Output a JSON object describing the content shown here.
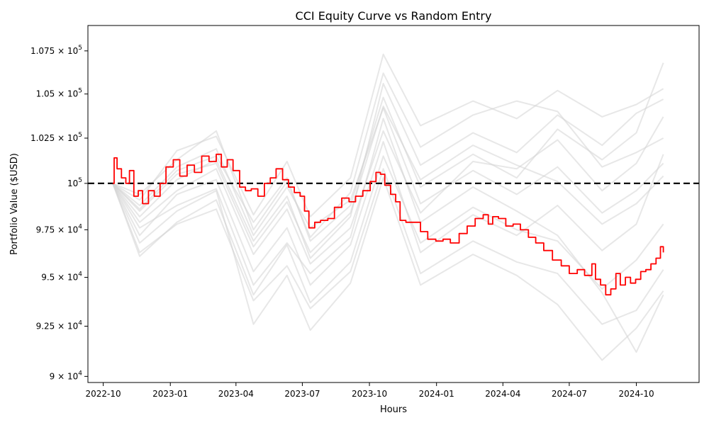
{
  "chart_data": {
    "type": "line",
    "title": "CCI Equity Curve vs Random Entry",
    "xlabel": "Hours",
    "ylabel": "Portfolio Value ($USD)",
    "xlim": [
      "2022-09-10",
      "2024-12-26"
    ],
    "ylim": [
      89700,
      109000
    ],
    "yscale": "log",
    "grid": false,
    "x_ticks": [
      "2022-10",
      "2023-01",
      "2023-04",
      "2023-07",
      "2023-10",
      "2024-01",
      "2024-04",
      "2024-07",
      "2024-10"
    ],
    "y_ticks": [
      {
        "value": 90000,
        "mantissa": "9",
        "exponent": "4"
      },
      {
        "value": 92500,
        "mantissa": "9.25",
        "exponent": "4"
      },
      {
        "value": 95000,
        "mantissa": "9.5",
        "exponent": "4"
      },
      {
        "value": 97500,
        "mantissa": "9.75",
        "exponent": "4"
      },
      {
        "value": 100000,
        "mantissa": "10",
        "exponent": "5"
      },
      {
        "value": 102500,
        "mantissa": "1.025",
        "exponent": "5"
      },
      {
        "value": 105000,
        "mantissa": "1.05",
        "exponent": "5"
      },
      {
        "value": 107500,
        "mantissa": "1.075",
        "exponent": "5"
      }
    ],
    "reference_line": {
      "value": 100000,
      "style": "dashed",
      "color": "#000000"
    },
    "colors": {
      "strategy": "#ff0000",
      "random": "#d3d3d3",
      "reference": "#000000"
    },
    "series": [
      {
        "color": "#ff0000",
        "points": [
          [
            "2022-10-14",
            100000
          ],
          [
            "2022-10-16",
            101400
          ],
          [
            "2022-10-20",
            100800
          ],
          [
            "2022-10-26",
            100300
          ],
          [
            "2022-11-01",
            100000
          ],
          [
            "2022-11-06",
            100700
          ],
          [
            "2022-11-12",
            99300
          ],
          [
            "2022-11-18",
            99600
          ],
          [
            "2022-11-24",
            98900
          ],
          [
            "2022-12-02",
            99600
          ],
          [
            "2022-12-10",
            99300
          ],
          [
            "2022-12-18",
            100000
          ],
          [
            "2022-12-26",
            100900
          ],
          [
            "2023-01-05",
            101300
          ],
          [
            "2023-01-14",
            100400
          ],
          [
            "2023-01-24",
            101000
          ],
          [
            "2023-02-03",
            100600
          ],
          [
            "2023-02-13",
            101500
          ],
          [
            "2023-02-23",
            101200
          ],
          [
            "2023-03-05",
            101600
          ],
          [
            "2023-03-12",
            100900
          ],
          [
            "2023-03-20",
            101300
          ],
          [
            "2023-03-28",
            100700
          ],
          [
            "2023-04-06",
            99800
          ],
          [
            "2023-04-14",
            99600
          ],
          [
            "2023-04-22",
            99700
          ],
          [
            "2023-05-01",
            99300
          ],
          [
            "2023-05-10",
            100000
          ],
          [
            "2023-05-18",
            100300
          ],
          [
            "2023-05-26",
            100800
          ],
          [
            "2023-06-04",
            100200
          ],
          [
            "2023-06-12",
            99800
          ],
          [
            "2023-06-20",
            99500
          ],
          [
            "2023-06-28",
            99300
          ],
          [
            "2023-07-04",
            98500
          ],
          [
            "2023-07-10",
            97600
          ],
          [
            "2023-07-18",
            97900
          ],
          [
            "2023-07-26",
            98000
          ],
          [
            "2023-08-05",
            98100
          ],
          [
            "2023-08-14",
            98700
          ],
          [
            "2023-08-24",
            99200
          ],
          [
            "2023-09-03",
            99000
          ],
          [
            "2023-09-12",
            99300
          ],
          [
            "2023-09-22",
            99600
          ],
          [
            "2023-10-02",
            100100
          ],
          [
            "2023-10-10",
            100600
          ],
          [
            "2023-10-16",
            100500
          ],
          [
            "2023-10-22",
            99900
          ],
          [
            "2023-10-30",
            99400
          ],
          [
            "2023-11-06",
            99000
          ],
          [
            "2023-11-12",
            98000
          ],
          [
            "2023-11-20",
            97900
          ],
          [
            "2023-12-01",
            97900
          ],
          [
            "2023-12-10",
            97400
          ],
          [
            "2023-12-20",
            97000
          ],
          [
            "2023-12-31",
            96900
          ],
          [
            "2024-01-10",
            97000
          ],
          [
            "2024-01-20",
            96800
          ],
          [
            "2024-02-01",
            97300
          ],
          [
            "2024-02-12",
            97700
          ],
          [
            "2024-02-23",
            98100
          ],
          [
            "2024-03-05",
            98300
          ],
          [
            "2024-03-12",
            97800
          ],
          [
            "2024-03-18",
            98200
          ],
          [
            "2024-03-26",
            98100
          ],
          [
            "2024-04-05",
            97700
          ],
          [
            "2024-04-15",
            97800
          ],
          [
            "2024-04-25",
            97500
          ],
          [
            "2024-05-06",
            97100
          ],
          [
            "2024-05-16",
            96800
          ],
          [
            "2024-05-27",
            96400
          ],
          [
            "2024-06-08",
            95900
          ],
          [
            "2024-06-20",
            95600
          ],
          [
            "2024-07-01",
            95200
          ],
          [
            "2024-07-12",
            95400
          ],
          [
            "2024-07-22",
            95100
          ],
          [
            "2024-08-01",
            95700
          ],
          [
            "2024-08-06",
            94900
          ],
          [
            "2024-08-13",
            94600
          ],
          [
            "2024-08-20",
            94100
          ],
          [
            "2024-08-27",
            94400
          ],
          [
            "2024-09-03",
            95200
          ],
          [
            "2024-09-09",
            94600
          ],
          [
            "2024-09-16",
            95000
          ],
          [
            "2024-09-23",
            94700
          ],
          [
            "2024-09-30",
            94900
          ],
          [
            "2024-10-07",
            95300
          ],
          [
            "2024-10-14",
            95400
          ],
          [
            "2024-10-21",
            95700
          ],
          [
            "2024-10-28",
            96000
          ],
          [
            "2024-11-03",
            96600
          ],
          [
            "2024-11-07",
            96300
          ]
        ]
      }
    ],
    "random_series": [
      [
        [
          "2022-10-14",
          100000
        ],
        [
          "2022-11-20",
          98600
        ],
        [
          "2023-01-10",
          100700
        ],
        [
          "2023-03-05",
          101500
        ],
        [
          "2023-04-25",
          97900
        ],
        [
          "2023-06-10",
          100300
        ],
        [
          "2023-07-12",
          96900
        ],
        [
          "2023-09-05",
          98800
        ],
        [
          "2023-10-20",
          104800
        ],
        [
          "2023-12-10",
          99800
        ],
        [
          "2024-02-20",
          101600
        ],
        [
          "2024-04-20",
          100300
        ],
        [
          "2024-06-15",
          103000
        ],
        [
          "2024-08-15",
          101300
        ],
        [
          "2024-10-01",
          102800
        ],
        [
          "2024-11-07",
          106800
        ]
      ],
      [
        [
          "2022-10-14",
          100000
        ],
        [
          "2022-11-20",
          97200
        ],
        [
          "2023-01-10",
          99400
        ],
        [
          "2023-03-05",
          100200
        ],
        [
          "2023-04-25",
          95300
        ],
        [
          "2023-06-10",
          97600
        ],
        [
          "2023-07-12",
          94600
        ],
        [
          "2023-09-05",
          96700
        ],
        [
          "2023-10-20",
          102300
        ],
        [
          "2023-12-10",
          96300
        ],
        [
          "2024-02-20",
          98300
        ],
        [
          "2024-04-20",
          97200
        ],
        [
          "2024-06-15",
          98800
        ],
        [
          "2024-08-15",
          96400
        ],
        [
          "2024-10-01",
          97800
        ],
        [
          "2024-11-07",
          101600
        ]
      ],
      [
        [
          "2022-10-14",
          100000
        ],
        [
          "2022-11-20",
          99100
        ],
        [
          "2023-01-10",
          101800
        ],
        [
          "2023-03-05",
          102600
        ],
        [
          "2023-04-25",
          98300
        ],
        [
          "2023-06-10",
          101200
        ],
        [
          "2023-07-12",
          98200
        ],
        [
          "2023-09-05",
          100300
        ],
        [
          "2023-10-20",
          107300
        ],
        [
          "2023-12-10",
          103200
        ],
        [
          "2024-02-20",
          104600
        ],
        [
          "2024-04-20",
          103600
        ],
        [
          "2024-06-15",
          105200
        ],
        [
          "2024-08-15",
          103700
        ],
        [
          "2024-10-01",
          104400
        ],
        [
          "2024-11-07",
          105300
        ]
      ],
      [
        [
          "2022-10-14",
          100000
        ],
        [
          "2022-11-20",
          96300
        ],
        [
          "2023-01-10",
          97800
        ],
        [
          "2023-03-05",
          98600
        ],
        [
          "2023-04-25",
          93800
        ],
        [
          "2023-06-10",
          95600
        ],
        [
          "2023-07-12",
          93400
        ],
        [
          "2023-09-05",
          95300
        ],
        [
          "2023-10-20",
          100800
        ],
        [
          "2023-12-10",
          95200
        ],
        [
          "2024-02-20",
          96900
        ],
        [
          "2024-04-20",
          95800
        ],
        [
          "2024-06-15",
          95200
        ],
        [
          "2024-08-15",
          92600
        ],
        [
          "2024-10-01",
          93300
        ],
        [
          "2024-11-07",
          95400
        ]
      ],
      [
        [
          "2022-10-14",
          100000
        ],
        [
          "2022-11-20",
          98200
        ],
        [
          "2023-01-10",
          100200
        ],
        [
          "2023-03-05",
          101300
        ],
        [
          "2023-04-25",
          96900
        ],
        [
          "2023-06-10",
          99300
        ],
        [
          "2023-07-12",
          96000
        ],
        [
          "2023-09-05",
          98200
        ],
        [
          "2023-10-20",
          105600
        ],
        [
          "2023-12-10",
          101000
        ],
        [
          "2024-02-20",
          102800
        ],
        [
          "2024-04-20",
          101700
        ],
        [
          "2024-06-15",
          103800
        ],
        [
          "2024-08-15",
          102100
        ],
        [
          "2024-10-01",
          103900
        ],
        [
          "2024-11-07",
          104700
        ]
      ],
      [
        [
          "2022-10-14",
          100000
        ],
        [
          "2022-11-20",
          97600
        ],
        [
          "2023-01-10",
          98800
        ],
        [
          "2023-03-05",
          99700
        ],
        [
          "2023-04-25",
          94600
        ],
        [
          "2023-06-10",
          96800
        ],
        [
          "2023-07-12",
          95200
        ],
        [
          "2023-09-05",
          97100
        ],
        [
          "2023-10-20",
          103600
        ],
        [
          "2023-12-10",
          97900
        ],
        [
          "2024-02-20",
          99800
        ],
        [
          "2024-04-20",
          98500
        ],
        [
          "2024-06-15",
          97200
        ],
        [
          "2024-08-15",
          94200
        ],
        [
          "2024-10-01",
          91200
        ],
        [
          "2024-11-07",
          94100
        ]
      ],
      [
        [
          "2022-10-14",
          100000
        ],
        [
          "2022-11-20",
          99400
        ],
        [
          "2023-01-10",
          101300
        ],
        [
          "2023-03-05",
          102900
        ],
        [
          "2023-04-25",
          97500
        ],
        [
          "2023-06-10",
          100100
        ],
        [
          "2023-07-12",
          97100
        ],
        [
          "2023-09-05",
          99500
        ],
        [
          "2023-10-20",
          106200
        ],
        [
          "2023-12-10",
          102000
        ],
        [
          "2024-02-20",
          103800
        ],
        [
          "2024-04-20",
          104600
        ],
        [
          "2024-06-15",
          104000
        ],
        [
          "2024-08-15",
          100900
        ],
        [
          "2024-10-01",
          101700
        ],
        [
          "2024-11-07",
          102500
        ]
      ],
      [
        [
          "2022-10-14",
          100000
        ],
        [
          "2022-11-20",
          96800
        ],
        [
          "2023-01-10",
          98500
        ],
        [
          "2023-03-05",
          99600
        ],
        [
          "2023-04-25",
          92600
        ],
        [
          "2023-06-10",
          95100
        ],
        [
          "2023-07-12",
          92300
        ],
        [
          "2023-09-05",
          94700
        ],
        [
          "2023-10-20",
          100300
        ],
        [
          "2023-12-10",
          94600
        ],
        [
          "2024-02-20",
          96200
        ],
        [
          "2024-04-20",
          95100
        ],
        [
          "2024-06-15",
          93600
        ],
        [
          "2024-08-15",
          90800
        ],
        [
          "2024-10-01",
          92400
        ],
        [
          "2024-11-07",
          94300
        ]
      ],
      [
        [
          "2022-10-14",
          100000
        ],
        [
          "2022-11-20",
          98800
        ],
        [
          "2023-01-10",
          100900
        ],
        [
          "2023-03-05",
          101900
        ],
        [
          "2023-04-25",
          97200
        ],
        [
          "2023-06-10",
          99800
        ],
        [
          "2023-07-12",
          97600
        ],
        [
          "2023-09-05",
          99100
        ],
        [
          "2023-10-20",
          104200
        ],
        [
          "2023-12-10",
          98900
        ],
        [
          "2024-02-20",
          100700
        ],
        [
          "2024-04-20",
          99400
        ],
        [
          "2024-06-15",
          100900
        ],
        [
          "2024-08-15",
          98400
        ],
        [
          "2024-10-01",
          99600
        ],
        [
          "2024-11-07",
          101100
        ]
      ],
      [
        [
          "2022-10-14",
          100000
        ],
        [
          "2022-11-20",
          97900
        ],
        [
          "2023-01-10",
          99600
        ],
        [
          "2023-03-05",
          100800
        ],
        [
          "2023-04-25",
          96200
        ],
        [
          "2023-06-10",
          98600
        ],
        [
          "2023-07-12",
          95700
        ],
        [
          "2023-09-05",
          97600
        ],
        [
          "2023-10-20",
          102900
        ],
        [
          "2023-12-10",
          98400
        ],
        [
          "2024-02-20",
          101200
        ],
        [
          "2024-04-20",
          100800
        ],
        [
          "2024-06-15",
          102400
        ],
        [
          "2024-08-15",
          99600
        ],
        [
          "2024-10-01",
          101100
        ],
        [
          "2024-11-07",
          103700
        ]
      ],
      [
        [
          "2022-10-14",
          100000
        ],
        [
          "2022-11-20",
          96100
        ],
        [
          "2023-01-10",
          97900
        ],
        [
          "2023-03-05",
          99100
        ],
        [
          "2023-04-25",
          94100
        ],
        [
          "2023-06-10",
          96700
        ],
        [
          "2023-07-12",
          93700
        ],
        [
          "2023-09-05",
          95800
        ],
        [
          "2023-10-20",
          101500
        ],
        [
          "2023-12-10",
          96800
        ],
        [
          "2024-02-20",
          98700
        ],
        [
          "2024-04-20",
          97500
        ],
        [
          "2024-06-15",
          96900
        ],
        [
          "2024-08-15",
          94400
        ],
        [
          "2024-10-01",
          95900
        ],
        [
          "2024-11-07",
          97800
        ]
      ],
      [
        [
          "2022-10-14",
          100000
        ],
        [
          "2022-11-20",
          98500
        ],
        [
          "2023-01-10",
          100500
        ],
        [
          "2023-03-05",
          101100
        ],
        [
          "2023-04-25",
          96600
        ],
        [
          "2023-06-10",
          99000
        ],
        [
          "2023-07-12",
          96300
        ],
        [
          "2023-09-05",
          98400
        ],
        [
          "2023-10-20",
          104300
        ],
        [
          "2023-12-10",
          100200
        ],
        [
          "2024-02-20",
          102100
        ],
        [
          "2024-04-20",
          101000
        ],
        [
          "2024-06-15",
          100100
        ],
        [
          "2024-08-15",
          97800
        ],
        [
          "2024-10-01",
          98900
        ],
        [
          "2024-11-07",
          100400
        ]
      ]
    ]
  }
}
